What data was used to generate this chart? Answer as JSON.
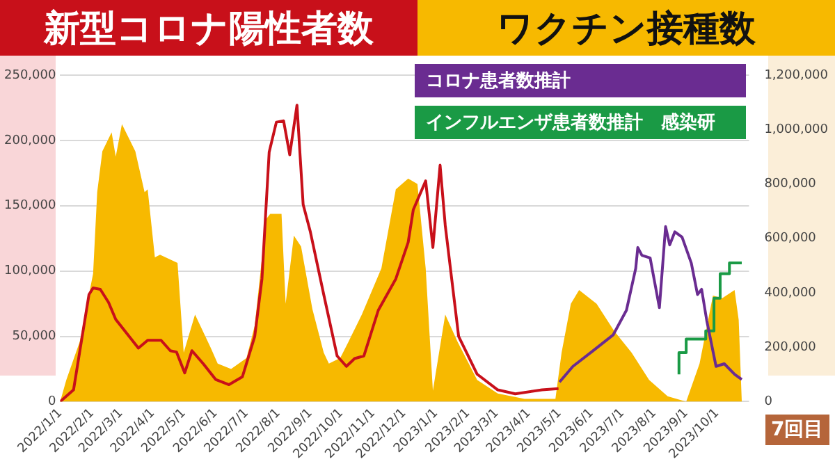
{
  "chart_data": {
    "type": "line",
    "legend": "top",
    "grid": "y",
    "marker": "none",
    "line_style": "solid",
    "xlim": [
      "2022-01-01",
      "2023-11-01"
    ],
    "xticks": [
      {
        "value": "2022-01-01",
        "label": "2022/1/1"
      },
      {
        "value": "2022-02-01",
        "label": "2022/2/1"
      },
      {
        "value": "2022-03-01",
        "label": "2022/3/1"
      },
      {
        "value": "2022-04-01",
        "label": "2022/4/1"
      },
      {
        "value": "2022-05-01",
        "label": "2022/5/1"
      },
      {
        "value": "2022-06-01",
        "label": "2022/6/1"
      },
      {
        "value": "2022-07-01",
        "label": "2022/7/1"
      },
      {
        "value": "2022-08-01",
        "label": "2022/8/1"
      },
      {
        "value": "2022-09-01",
        "label": "2022/9/1"
      },
      {
        "value": "2022-10-01",
        "label": "2022/10/1"
      },
      {
        "value": "2022-11-01",
        "label": "2022/11/1"
      },
      {
        "value": "2022-12-01",
        "label": "2022/12/1"
      },
      {
        "value": "2023-01-01",
        "label": "2023/1/1"
      },
      {
        "value": "2023-02-01",
        "label": "2023/2/1"
      },
      {
        "value": "2023-03-01",
        "label": "2023/3/1"
      },
      {
        "value": "2023-04-01",
        "label": "2023/4/1"
      },
      {
        "value": "2023-05-01",
        "label": "2023/5/1"
      },
      {
        "value": "2023-06-01",
        "label": "2023/6/1"
      },
      {
        "value": "2023-07-01",
        "label": "2023/7/1"
      },
      {
        "value": "2023-08-01",
        "label": "2023/8/1"
      },
      {
        "value": "2023-09-01",
        "label": "2023/9/1"
      },
      {
        "value": "2023-10-01",
        "label": "2023/10/1"
      }
    ],
    "ylim": [
      0,
      250000
    ],
    "yticks": [
      {
        "value": 0,
        "label": "0"
      },
      {
        "value": 50000,
        "label": "50,000"
      },
      {
        "value": 100000,
        "label": "100,000"
      },
      {
        "value": 150000,
        "label": "150,000"
      },
      {
        "value": 200000,
        "label": "200,000"
      },
      {
        "value": 250000,
        "label": "250,000"
      }
    ],
    "y2lim": [
      0,
      1200000
    ],
    "y2ticks": [
      {
        "value": 0,
        "label": "0"
      },
      {
        "value": 200000,
        "label": "200,000"
      },
      {
        "value": 400000,
        "label": "400,000"
      },
      {
        "value": 600000,
        "label": "600,000"
      },
      {
        "value": 800000,
        "label": "800,000"
      },
      {
        "value": 1000000,
        "label": "1,000,000"
      },
      {
        "value": 1200000,
        "label": "1,200,000"
      }
    ],
    "annotations": [
      "7回目"
    ],
    "series": [
      {
        "name": "新型コロナ陽性者数",
        "color": "#c8101a",
        "x": [
          "2022-01-01",
          "2022-01-14",
          "2022-01-29",
          "2022-02-02",
          "2022-02-09",
          "2022-02-17",
          "2022-02-24",
          "2022-03-18",
          "2022-03-27",
          "2022-04-09",
          "2022-04-18",
          "2022-04-24",
          "2022-05-02",
          "2022-05-09",
          "2022-05-20",
          "2022-06-01",
          "2022-06-14",
          "2022-06-27",
          "2022-07-09",
          "2022-07-16",
          "2022-07-23",
          "2022-07-30",
          "2022-08-06",
          "2022-08-12",
          "2022-08-19",
          "2022-08-25",
          "2022-09-01",
          "2022-09-14",
          "2022-09-27",
          "2022-10-06",
          "2022-10-14",
          "2022-10-23",
          "2022-11-06",
          "2022-11-23",
          "2022-12-05",
          "2022-12-10",
          "2022-12-22",
          "2022-12-29",
          "2023-01-05",
          "2023-01-10",
          "2023-01-23",
          "2023-02-10",
          "2023-03-02",
          "2023-03-19",
          "2023-04-14",
          "2023-04-30"
        ],
        "values": [
          0,
          9000,
          82000,
          87000,
          86000,
          76000,
          63000,
          41000,
          47000,
          47000,
          39000,
          38000,
          22000,
          39000,
          29000,
          17000,
          13000,
          19000,
          50000,
          94000,
          191000,
          214000,
          215000,
          189000,
          227000,
          151000,
          130000,
          82000,
          35000,
          27000,
          33000,
          35000,
          70000,
          94000,
          122000,
          147000,
          169000,
          118000,
          181000,
          135000,
          50000,
          21000,
          9000,
          6000,
          9000,
          10000
        ]
      },
      {
        "name": "ワクチン接種数",
        "type": "area",
        "axis": "y2",
        "color": "#f7b900",
        "x": [
          "2022-01-01",
          "2022-01-07",
          "2022-01-20",
          "2022-02-02",
          "2022-02-06",
          "2022-02-11",
          "2022-02-20",
          "2022-02-24",
          "2022-03-02",
          "2022-03-15",
          "2022-03-24",
          "2022-03-27",
          "2022-04-03",
          "2022-04-08",
          "2022-04-25",
          "2022-05-01",
          "2022-05-12",
          "2022-05-27",
          "2022-06-03",
          "2022-06-16",
          "2022-07-01",
          "2022-07-09",
          "2022-07-20",
          "2022-07-24",
          "2022-08-04",
          "2022-08-08",
          "2022-08-16",
          "2022-08-23",
          "2022-09-03",
          "2022-09-14",
          "2022-09-19",
          "2022-09-30",
          "2022-10-08",
          "2022-10-21",
          "2022-11-09",
          "2022-11-23",
          "2022-12-05",
          "2022-12-14",
          "2022-12-22",
          "2022-12-29",
          "2023-01-10",
          "2023-01-22",
          "2023-02-10",
          "2023-03-02",
          "2023-03-28",
          "2023-04-27",
          "2023-05-03",
          "2023-05-12",
          "2023-05-20",
          "2023-06-06",
          "2023-06-23",
          "2023-07-10",
          "2023-07-27",
          "2023-08-14",
          "2023-09-01",
          "2023-09-14",
          "2023-09-27",
          "2023-10-06",
          "2023-10-18",
          "2023-10-22",
          "2023-10-25"
        ],
        "values": [
          0,
          80000,
          220000,
          470000,
          770000,
          920000,
          990000,
          900000,
          1020000,
          920000,
          770000,
          780000,
          530000,
          540000,
          510000,
          180000,
          320000,
          200000,
          140000,
          120000,
          160000,
          280000,
          670000,
          690000,
          690000,
          360000,
          610000,
          570000,
          340000,
          180000,
          140000,
          160000,
          220000,
          320000,
          490000,
          780000,
          820000,
          800000,
          490000,
          40000,
          320000,
          220000,
          80000,
          30000,
          10000,
          10000,
          180000,
          360000,
          410000,
          360000,
          260000,
          180000,
          80000,
          20000,
          0,
          140000,
          390000,
          380000,
          410000,
          300000,
          0
        ]
      },
      {
        "name": "コロナ患者数推計",
        "color": "#6a2c91",
        "x": [
          "2023-05-01",
          "2023-05-14",
          "2023-06-01",
          "2023-06-22",
          "2023-07-05",
          "2023-07-14",
          "2023-07-16",
          "2023-07-20",
          "2023-07-28",
          "2023-08-06",
          "2023-08-12",
          "2023-08-16",
          "2023-08-21",
          "2023-08-28",
          "2023-09-06",
          "2023-09-12",
          "2023-09-16",
          "2023-09-21",
          "2023-09-30",
          "2023-10-08",
          "2023-10-18",
          "2023-10-25"
        ],
        "values": [
          15000,
          27000,
          38000,
          51000,
          70000,
          102000,
          118000,
          112000,
          110000,
          72000,
          134000,
          120000,
          130000,
          126000,
          106000,
          82000,
          86000,
          62000,
          27000,
          29000,
          21000,
          17000
        ]
      },
      {
        "name": "インフルエンザ患者数推計　感染研",
        "type": "step",
        "axis": "y2",
        "color": "#1a9a45",
        "x": [
          "2023-08-25",
          "2023-09-01",
          "2023-09-20",
          "2023-09-28",
          "2023-10-04",
          "2023-10-13",
          "2023-10-20",
          "2023-10-25"
        ],
        "values": [
          100000,
          180000,
          230000,
          260000,
          380000,
          470000,
          510000,
          510000
        ]
      }
    ]
  }
}
